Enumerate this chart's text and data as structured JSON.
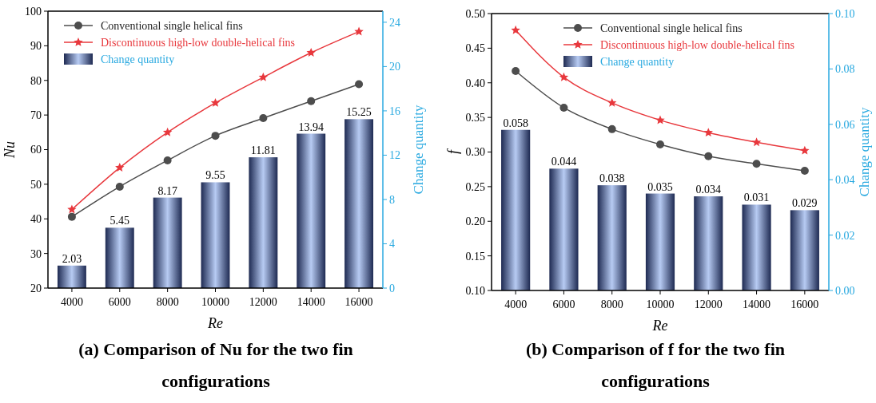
{
  "chart_data": [
    {
      "type": "line",
      "title": "(a) Comparison of Nu for the two fin configurations",
      "xlabel": "Re",
      "ylabel": "Nu",
      "y2label": "Change quantity",
      "categories": [
        "4000",
        "6000",
        "8000",
        "10000",
        "12000",
        "14000",
        "16000"
      ],
      "ylim": [
        20,
        100
      ],
      "yticks": [
        20,
        30,
        40,
        50,
        60,
        70,
        80,
        90,
        100
      ],
      "y2lim": [
        0,
        25
      ],
      "y2ticks": [
        0,
        4,
        8,
        12,
        16,
        20,
        24
      ],
      "legend": "top left",
      "grid": false,
      "series": [
        {
          "name": "Conventional single helical fins",
          "color": "#4d4d4d",
          "marker": "circle",
          "values": [
            40.6,
            49.3,
            56.9,
            64.0,
            69.1,
            74.0,
            78.9
          ]
        },
        {
          "name": "Discontinuous high-low double-helical fins",
          "color": "#e8383d",
          "marker": "star",
          "values": [
            42.7,
            54.8,
            65.0,
            73.5,
            80.9,
            88.0,
            94.1
          ]
        },
        {
          "name": "Change quantity",
          "type": "bar",
          "axis": "y2",
          "color": "#b7cbf3",
          "data_labels": true,
          "values": [
            2.03,
            5.45,
            8.17,
            9.55,
            11.81,
            13.94,
            15.25
          ]
        }
      ]
    },
    {
      "type": "line",
      "title": "(b) Comparison of f for the two fin configurations",
      "xlabel": "Re",
      "ylabel": "f",
      "y2label": "Change quantity",
      "categories": [
        "4000",
        "6000",
        "8000",
        "10000",
        "12000",
        "14000",
        "16000"
      ],
      "ylim": [
        0.1,
        0.5
      ],
      "yticks": [
        {
          "value": 0.1,
          "label": "0.10"
        },
        0.15,
        {
          "value": 0.2,
          "label": "0.20"
        },
        0.25,
        {
          "value": 0.3,
          "label": "0.30"
        },
        0.35,
        {
          "value": 0.4,
          "label": "0.40"
        },
        0.45,
        {
          "value": 0.5,
          "label": "0.50"
        }
      ],
      "y2lim": [
        0,
        0.1
      ],
      "y2ticks": [
        {
          "value": 0,
          "label": "0.00"
        },
        0.02,
        0.04,
        0.06,
        0.08,
        {
          "value": 0.1,
          "label": "0.10"
        }
      ],
      "legend": "top",
      "grid": false,
      "series": [
        {
          "name": "Conventional single helical fins",
          "color": "#4d4d4d",
          "marker": "circle",
          "values": [
            0.417,
            0.364,
            0.333,
            0.311,
            0.294,
            0.283,
            0.273
          ]
        },
        {
          "name": "Discontinuous high-low double-helical fins",
          "color": "#e8383d",
          "marker": "star",
          "values": [
            0.476,
            0.408,
            0.371,
            0.346,
            0.328,
            0.314,
            0.302
          ]
        },
        {
          "name": "Change quantity",
          "type": "bar",
          "axis": "y2",
          "color": "#b7cbf3",
          "data_labels": true,
          "values": [
            0.058,
            0.044,
            0.038,
            0.035,
            0.034,
            0.031,
            0.029
          ]
        }
      ]
    }
  ]
}
